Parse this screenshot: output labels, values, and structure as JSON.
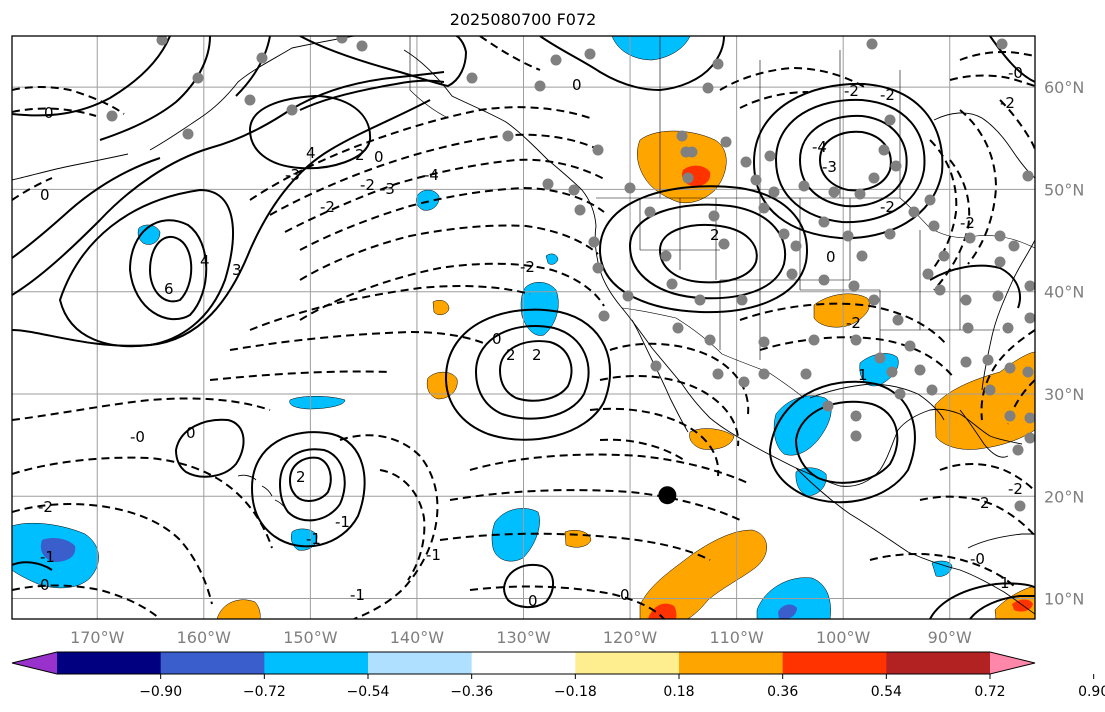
{
  "title": "2025080700 F072",
  "map": {
    "lon_range": [
      -178,
      -82
    ],
    "lat_range": [
      8,
      65
    ],
    "projection": "PlateCarree",
    "gridlines": true,
    "lon_ticks": [
      -170,
      -160,
      -150,
      -140,
      -130,
      -120,
      -110,
      -100,
      -90
    ],
    "lat_ticks": [
      10,
      20,
      30,
      40,
      50,
      60
    ],
    "lon_tick_labels": [
      "170°W",
      "160°W",
      "150°W",
      "140°W",
      "130°W",
      "120°W",
      "110°W",
      "100°W",
      "90°W"
    ],
    "lat_tick_labels": [
      "10°N",
      "20°N",
      "30°N",
      "40°N",
      "50°N",
      "60°N"
    ],
    "marker": {
      "lon": -116.5,
      "lat": 20.1,
      "color": "#000000"
    },
    "contour_label_values": [
      "0",
      "-2",
      "-4",
      "-3",
      "-2",
      "0",
      "0",
      "-2",
      "-3",
      "2",
      "4",
      "3",
      "-2",
      "0",
      "-2",
      "-4",
      "-3",
      "-2",
      "4",
      "6",
      "0",
      "-2",
      "0",
      "2",
      "2",
      "-2",
      "0",
      "-1",
      "2",
      "2",
      "-1",
      "0",
      "-2",
      "-1",
      "0",
      "0",
      "2",
      "-2",
      "1",
      "-1",
      "-2",
      "-1",
      "-0",
      "-0",
      "1",
      "-0"
    ]
  },
  "colorbar": {
    "orientation": "horizontal",
    "extend": "both",
    "colors": [
      "#9932cc",
      "#000080",
      "#3a5fcd",
      "#00bfff",
      "#afe0ff",
      "#ffffff",
      "#ffee90",
      "#ffa500",
      "#ff3300",
      "#b22222",
      "#ff88aa"
    ],
    "tick_labels": [
      "−0.90",
      "−0.72",
      "−0.54",
      "−0.36",
      "−0.18",
      "0.18",
      "0.36",
      "0.54",
      "0.72",
      "0.90"
    ]
  },
  "colors": {
    "land_outline": "#000000",
    "grid": "#9e9e9e",
    "station_dot": "#808080",
    "orange_fill": "#ffa500",
    "red_fill": "#ff3300",
    "sky_fill": "#00bfff",
    "blue_fill": "#3a5fcd",
    "purple_fill": "#9932cc"
  }
}
